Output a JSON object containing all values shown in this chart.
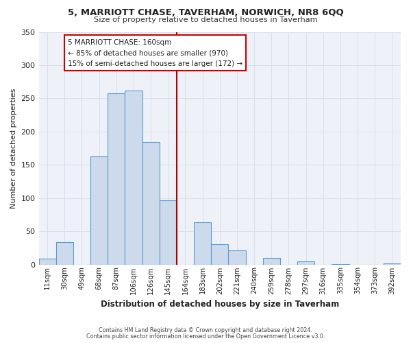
{
  "title": "5, MARRIOTT CHASE, TAVERHAM, NORWICH, NR8 6QQ",
  "subtitle": "Size of property relative to detached houses in Taverham",
  "xlabel": "Distribution of detached houses by size in Taverham",
  "ylabel": "Number of detached properties",
  "bar_labels": [
    "11sqm",
    "30sqm",
    "49sqm",
    "68sqm",
    "87sqm",
    "106sqm",
    "126sqm",
    "145sqm",
    "164sqm",
    "183sqm",
    "202sqm",
    "221sqm",
    "240sqm",
    "259sqm",
    "278sqm",
    "297sqm",
    "316sqm",
    "335sqm",
    "354sqm",
    "373sqm",
    "392sqm"
  ],
  "bar_values": [
    9,
    34,
    0,
    163,
    258,
    262,
    184,
    97,
    0,
    63,
    30,
    21,
    0,
    10,
    0,
    5,
    0,
    1,
    0,
    0,
    2
  ],
  "bar_color": "#ccdaeb",
  "bar_edge_color": "#5b9bd5",
  "grid_color": "#d8e0ea",
  "vline_color": "#aa0000",
  "annotation_title": "5 MARRIOTT CHASE: 160sqm",
  "annotation_line1": "← 85% of detached houses are smaller (970)",
  "annotation_line2": "15% of semi-detached houses are larger (172) →",
  "annotation_box_color": "#ffffff",
  "annotation_box_edge": "#cc0000",
  "ylim": [
    0,
    350
  ],
  "yticks": [
    0,
    50,
    100,
    150,
    200,
    250,
    300,
    350
  ],
  "footer1": "Contains HM Land Registry data © Crown copyright and database right 2024.",
  "footer2": "Contains public sector information licensed under the Open Government Licence v3.0.",
  "bg_color": "#ffffff",
  "plot_bg_color": "#eef2f8"
}
